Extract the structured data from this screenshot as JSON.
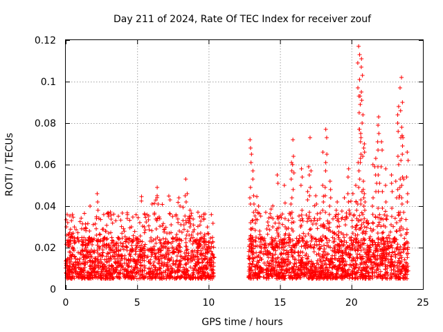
{
  "chart_data": {
    "type": "scatter",
    "title": "Day 211 of 2024, Rate Of TEC Index for receiver zouf",
    "xlabel": "GPS time / hours",
    "ylabel": "ROTI / TECUs",
    "xlim": [
      0,
      25
    ],
    "ylim": [
      0,
      0.12
    ],
    "xticks": [
      0,
      5,
      10,
      15,
      20,
      25
    ],
    "xtick_labels": [
      "0",
      "5",
      "10",
      "15",
      "20",
      "25"
    ],
    "yticks": [
      0,
      0.02,
      0.04,
      0.06,
      0.08,
      0.1,
      0.12
    ],
    "ytick_labels": [
      "0",
      "0.02",
      "0.04",
      "0.06",
      "0.08",
      "0.1",
      "0.12"
    ],
    "grid": true,
    "marker": "+",
    "series": [
      {
        "name": "ROTI",
        "color": "#ff0000",
        "segments": [
          [
            0.0,
            10.4
          ],
          [
            12.8,
            24.0
          ]
        ],
        "typical_range": [
          0.005,
          0.025
        ],
        "notable_points": [
          {
            "x": 0.05,
            "y": 0.03
          },
          {
            "x": 0.4,
            "y": 0.033
          },
          {
            "x": 1.7,
            "y": 0.04
          },
          {
            "x": 2.2,
            "y": 0.046
          },
          {
            "x": 3.0,
            "y": 0.035
          },
          {
            "x": 3.5,
            "y": 0.033
          },
          {
            "x": 4.6,
            "y": 0.03
          },
          {
            "x": 5.5,
            "y": 0.03
          },
          {
            "x": 6.2,
            "y": 0.036
          },
          {
            "x": 6.4,
            "y": 0.049
          },
          {
            "x": 7.3,
            "y": 0.043
          },
          {
            "x": 8.0,
            "y": 0.04
          },
          {
            "x": 8.4,
            "y": 0.053
          },
          {
            "x": 8.5,
            "y": 0.046
          },
          {
            "x": 8.7,
            "y": 0.038
          },
          {
            "x": 9.5,
            "y": 0.035
          },
          {
            "x": 10.2,
            "y": 0.022
          },
          {
            "x": 12.9,
            "y": 0.072
          },
          {
            "x": 13.0,
            "y": 0.065
          },
          {
            "x": 13.1,
            "y": 0.057
          },
          {
            "x": 13.5,
            "y": 0.04
          },
          {
            "x": 14.0,
            "y": 0.037
          },
          {
            "x": 14.5,
            "y": 0.034
          },
          {
            "x": 14.8,
            "y": 0.055
          },
          {
            "x": 15.3,
            "y": 0.05
          },
          {
            "x": 15.8,
            "y": 0.061
          },
          {
            "x": 15.9,
            "y": 0.072
          },
          {
            "x": 16.5,
            "y": 0.058
          },
          {
            "x": 17.0,
            "y": 0.059
          },
          {
            "x": 17.1,
            "y": 0.073
          },
          {
            "x": 17.5,
            "y": 0.045
          },
          {
            "x": 18.0,
            "y": 0.066
          },
          {
            "x": 18.2,
            "y": 0.077
          },
          {
            "x": 18.5,
            "y": 0.052
          },
          {
            "x": 19.0,
            "y": 0.042
          },
          {
            "x": 19.5,
            "y": 0.044
          },
          {
            "x": 19.8,
            "y": 0.058
          },
          {
            "x": 20.1,
            "y": 0.046
          },
          {
            "x": 20.3,
            "y": 0.05
          },
          {
            "x": 20.5,
            "y": 0.117
          },
          {
            "x": 20.6,
            "y": 0.093
          },
          {
            "x": 20.7,
            "y": 0.111
          },
          {
            "x": 20.8,
            "y": 0.084
          },
          {
            "x": 20.9,
            "y": 0.07
          },
          {
            "x": 21.5,
            "y": 0.06
          },
          {
            "x": 21.7,
            "y": 0.063
          },
          {
            "x": 21.9,
            "y": 0.083
          },
          {
            "x": 22.1,
            "y": 0.071
          },
          {
            "x": 22.4,
            "y": 0.058
          },
          {
            "x": 22.8,
            "y": 0.055
          },
          {
            "x": 23.1,
            "y": 0.052
          },
          {
            "x": 23.3,
            "y": 0.088
          },
          {
            "x": 23.4,
            "y": 0.097
          },
          {
            "x": 23.5,
            "y": 0.102
          },
          {
            "x": 23.6,
            "y": 0.073
          },
          {
            "x": 23.9,
            "y": 0.066
          }
        ]
      }
    ]
  }
}
